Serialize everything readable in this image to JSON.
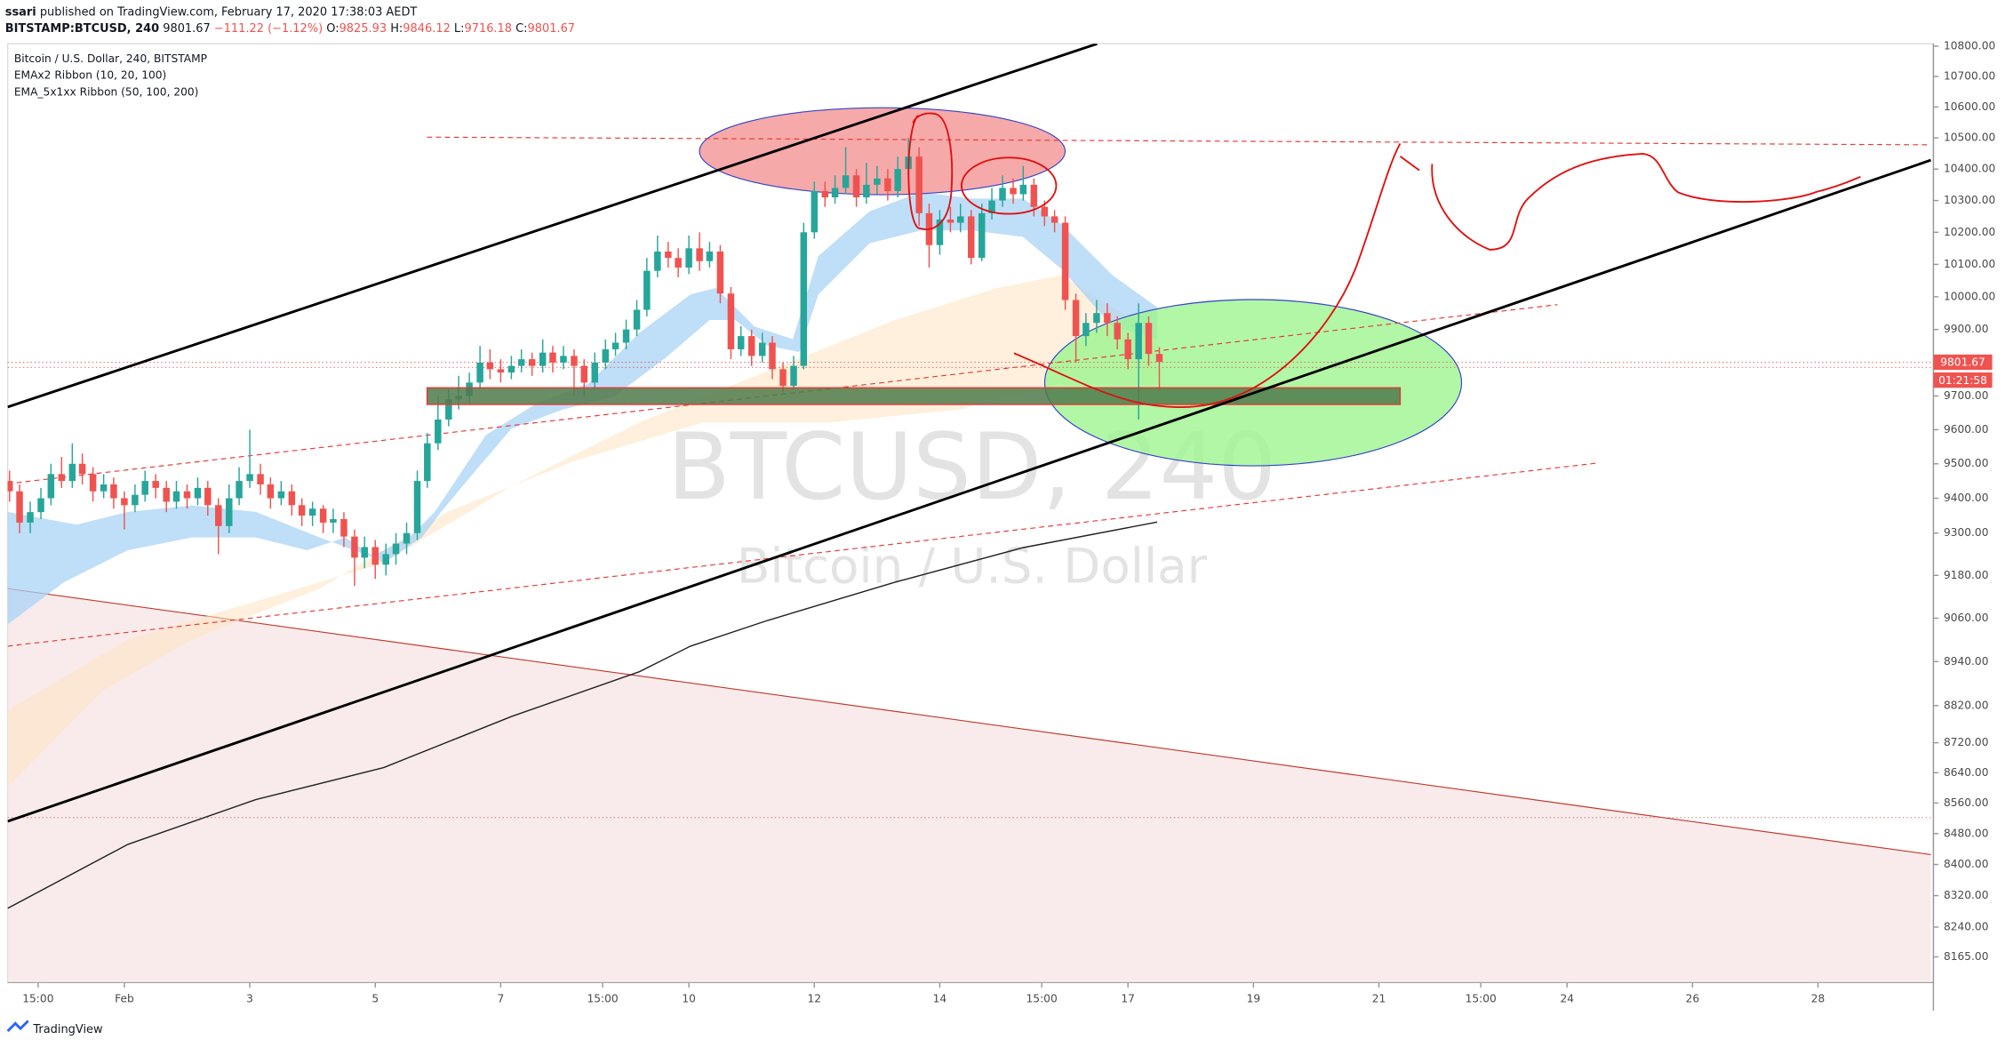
{
  "header": {
    "author": "ssari",
    "published": "published on TradingView.com, February 17, 2020 17:38:03 AEDT",
    "symbol": "BITSTAMP:BTCUSD, 240",
    "change": "−111.22 (−1.12%)",
    "ohlc_labels": [
      "O:",
      "H:",
      "L:",
      "C:"
    ]
  },
  "footer": {
    "brand": "TradingView"
  },
  "chart_data": {
    "type": "candlestick",
    "legend": [
      "Bitcoin / U.S. Dollar, 240, BITSTAMP",
      "EMAx2 Ribbon (10, 20, 100)",
      "EMA_5x1xx Ribbon  (50, 100, 200)"
    ],
    "watermark": [
      "BTCUSD, 240",
      "Bitcoin / U.S. Dollar"
    ],
    "countdown": "01:21:58",
    "up_color": "#26a69a",
    "down_color": "#ef5350",
    "log_scale": true,
    "x": [
      -0.83,
      -0.67,
      -0.5,
      -0.33,
      -0.17,
      0,
      0.17,
      0.33,
      0.5,
      0.67,
      0.83,
      1,
      1.17,
      1.33,
      1.5,
      1.67,
      1.83,
      2,
      2.17,
      2.33,
      2.5,
      2.67,
      2.83,
      3,
      3.17,
      3.33,
      3.5,
      3.67,
      3.83,
      4,
      4.17,
      4.33,
      4.5,
      4.67,
      4.83,
      5,
      5.17,
      5.33,
      5.5,
      5.67,
      5.83,
      6,
      6.17,
      6.33,
      6.5,
      6.67,
      6.83,
      7,
      7.17,
      7.33,
      7.5,
      7.67,
      7.83,
      8,
      8.17,
      8.33,
      8.5,
      8.67,
      8.83,
      9,
      9.17,
      9.33,
      9.5,
      9.67,
      9.83,
      10,
      10.17,
      10.33,
      10.5,
      10.67,
      10.83,
      11,
      11.17,
      11.33,
      11.5,
      11.67,
      11.83,
      12,
      12.17,
      12.33,
      12.5,
      12.67,
      12.83,
      13,
      13.17,
      13.33,
      13.5,
      13.67,
      13.83,
      14,
      14.17,
      14.33,
      14.5,
      14.67,
      14.83,
      15,
      15.17,
      15.33,
      15.5,
      15.67,
      15.83,
      16,
      16.17,
      16.33,
      16.5,
      16.67,
      16.83,
      17,
      17.17,
      17.33,
      17.5
    ],
    "open": [
      9450,
      9420,
      9330,
      9360,
      9400,
      9470,
      9450,
      9500,
      9470,
      9420,
      9440,
      9400,
      9380,
      9410,
      9450,
      9430,
      9390,
      9420,
      9400,
      9430,
      9380,
      9320,
      9400,
      9450,
      9470,
      9440,
      9400,
      9420,
      9380,
      9350,
      9370,
      9330,
      9340,
      9290,
      9230,
      9260,
      9210,
      9240,
      9270,
      9300,
      9450,
      9560,
      9630,
      9690,
      9700,
      9740,
      9800,
      9780,
      9770,
      9790,
      9810,
      9790,
      9830,
      9800,
      9820,
      9790,
      9740,
      9800,
      9840,
      9860,
      9900,
      9960,
      10080,
      10140,
      10120,
      10090,
      10150,
      10110,
      10140,
      10010,
      9840,
      9880,
      9820,
      9860,
      9780,
      9730,
      9790,
      10200,
      10330,
      10310,
      10340,
      10380,
      10310,
      10350,
      10370,
      10330,
      10400,
      10440,
      10260,
      10160,
      10240,
      10230,
      10250,
      10120,
      10260,
      10300,
      10340,
      10320,
      10350,
      10280,
      10250,
      10230,
      9990,
      9880,
      9920,
      9950,
      9920,
      9870,
      9810,
      9920,
      9825.93
    ],
    "high": [
      9480,
      9440,
      9390,
      9430,
      9500,
      9520,
      9560,
      9530,
      9490,
      9470,
      9460,
      9420,
      9440,
      9480,
      9470,
      9450,
      9450,
      9440,
      9460,
      9450,
      9400,
      9440,
      9490,
      9600,
      9500,
      9460,
      9450,
      9440,
      9400,
      9390,
      9380,
      9370,
      9360,
      9310,
      9290,
      9280,
      9270,
      9300,
      9330,
      9480,
      9590,
      9700,
      9720,
      9760,
      9770,
      9850,
      9840,
      9810,
      9820,
      9840,
      9830,
      9870,
      9850,
      9850,
      9840,
      9810,
      9830,
      9870,
      9890,
      9930,
      9990,
      10120,
      10190,
      10170,
      10150,
      10190,
      10200,
      10170,
      10160,
      10030,
      9910,
      9900,
      9890,
      9880,
      9800,
      9820,
      10230,
      10360,
      10360,
      10380,
      10470,
      10400,
      10420,
      10410,
      10400,
      10440,
      10500,
      10470,
      10290,
      10270,
      10280,
      10290,
      10270,
      10290,
      10340,
      10380,
      10370,
      10410,
      10370,
      10300,
      10270,
      10250,
      10010,
      9950,
      9990,
      9980,
      9940,
      9890,
      9980,
      9940,
      9846.12
    ],
    "low": [
      9390,
      9300,
      9300,
      9340,
      9380,
      9430,
      9430,
      9440,
      9390,
      9400,
      9370,
      9310,
      9360,
      9390,
      9400,
      9360,
      9370,
      9370,
      9380,
      9350,
      9240,
      9300,
      9380,
      9430,
      9410,
      9370,
      9380,
      9350,
      9320,
      9320,
      9300,
      9300,
      9260,
      9150,
      9200,
      9170,
      9180,
      9210,
      9240,
      9280,
      9430,
      9540,
      9610,
      9660,
      9680,
      9720,
      9750,
      9740,
      9750,
      9770,
      9760,
      9770,
      9770,
      9780,
      9700,
      9700,
      9720,
      9780,
      9820,
      9840,
      9880,
      9940,
      10060,
      10090,
      10060,
      10070,
      10080,
      10090,
      9980,
      9810,
      9820,
      9790,
      9800,
      9750,
      9710,
      9720,
      9780,
      10180,
      10280,
      10290,
      10320,
      10280,
      10290,
      10320,
      10300,
      10310,
      10370,
      10220,
      10090,
      10130,
      10200,
      10200,
      10100,
      10110,
      10240,
      10280,
      10290,
      10300,
      10250,
      10220,
      10200,
      9960,
      9800,
      9850,
      9890,
      9880,
      9840,
      9780,
      9630,
      9790,
      9716.18
    ],
    "close": [
      9420,
      9330,
      9360,
      9400,
      9470,
      9450,
      9500,
      9470,
      9420,
      9440,
      9400,
      9380,
      9410,
      9450,
      9430,
      9390,
      9420,
      9400,
      9430,
      9380,
      9320,
      9400,
      9450,
      9470,
      9440,
      9400,
      9420,
      9380,
      9350,
      9370,
      9330,
      9340,
      9290,
      9230,
      9260,
      9210,
      9240,
      9270,
      9300,
      9450,
      9560,
      9630,
      9690,
      9700,
      9740,
      9800,
      9780,
      9770,
      9790,
      9810,
      9790,
      9830,
      9800,
      9820,
      9790,
      9740,
      9800,
      9840,
      9860,
      9900,
      9960,
      10080,
      10140,
      10120,
      10090,
      10150,
      10110,
      10140,
      10010,
      9840,
      9880,
      9820,
      9860,
      9780,
      9730,
      9790,
      10200,
      10330,
      10310,
      10340,
      10380,
      10310,
      10350,
      10370,
      10330,
      10400,
      10440,
      10260,
      10160,
      10240,
      10230,
      10250,
      10120,
      10260,
      10300,
      10340,
      10320,
      10350,
      10280,
      10250,
      10230,
      9990,
      9880,
      9920,
      9950,
      9920,
      9870,
      9810,
      9920,
      9825.93,
      9801.67
    ],
    "xlim": [
      -0.86,
      29.84
    ],
    "xticks": [
      {
        "value": -0.375,
        "label": "15:00"
      },
      {
        "value": 1,
        "label": "Feb"
      },
      3,
      5,
      7,
      {
        "value": 8.625,
        "label": "15:00"
      },
      10,
      12,
      14,
      {
        "value": 15.625,
        "label": "15:00"
      },
      17,
      19,
      21,
      {
        "value": 22.625,
        "label": "15:00"
      },
      24,
      26,
      28
    ],
    "ylim": [
      8101,
      10808
    ],
    "yticks": [
      {
        "value": 10800,
        "label": "10800.00"
      },
      {
        "value": 10700,
        "label": "10700.00"
      },
      {
        "value": 10600,
        "label": "10600.00"
      },
      {
        "value": 10500,
        "label": "10500.00"
      },
      {
        "value": 10400,
        "label": "10400.00"
      },
      {
        "value": 10300,
        "label": "10300.00"
      },
      {
        "value": 10200,
        "label": "10200.00"
      },
      {
        "value": 10100,
        "label": "10100.00"
      },
      {
        "value": 10000,
        "label": "10000.00"
      },
      {
        "value": 9900,
        "label": "9900.00"
      },
      {
        "value": 9700,
        "label": "9700.00"
      },
      {
        "value": 9600,
        "label": "9600.00"
      },
      {
        "value": 9500,
        "label": "9500.00"
      },
      {
        "value": 9400,
        "label": "9400.00"
      },
      {
        "value": 9300,
        "label": "9300.00"
      },
      {
        "value": 9180,
        "label": "9180.00"
      },
      {
        "value": 9060,
        "label": "9060.00"
      },
      {
        "value": 8940,
        "label": "8940.00"
      },
      {
        "value": 8820,
        "label": "8820.00"
      },
      {
        "value": 8720,
        "label": "8720.00"
      },
      {
        "value": 8640,
        "label": "8640.00"
      },
      {
        "value": 8560,
        "label": "8560.00"
      },
      {
        "value": 8480,
        "label": "8480.00"
      },
      {
        "value": 8400,
        "label": "8400.00"
      },
      {
        "value": 8320,
        "label": "8320.00"
      },
      {
        "value": 8240,
        "label": "8240.00"
      },
      {
        "value": 8165,
        "label": "8165.00"
      }
    ]
  }
}
